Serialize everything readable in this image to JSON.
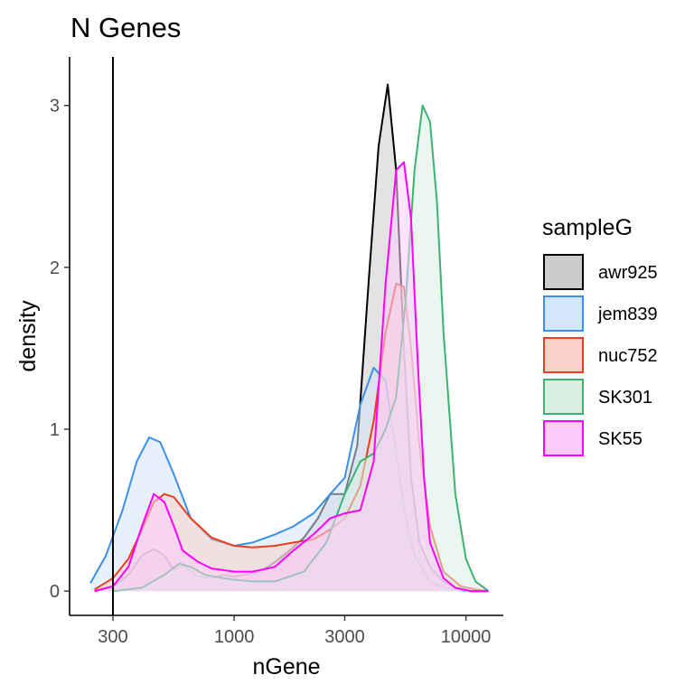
{
  "chart_data": {
    "type": "area",
    "title": "N Genes",
    "xlabel": "nGene",
    "ylabel": "density",
    "x_scale": "log10",
    "x_ticks": [
      300,
      1000,
      3000,
      10000
    ],
    "x_tick_labels": [
      "300",
      "1000",
      "3000",
      "10000"
    ],
    "xlim": [
      195,
      14500
    ],
    "y_ticks": [
      0,
      1,
      2,
      3
    ],
    "y_tick_labels": [
      "0",
      "1",
      "2",
      "3"
    ],
    "ylim": [
      -0.15,
      3.3
    ],
    "vline_x": 300,
    "grid": false,
    "legend": {
      "title": "sampleG",
      "position": "right"
    },
    "series": [
      {
        "name": "awr925",
        "color": "#000000",
        "fill": "#cccccc",
        "x": [
          250,
          300,
          350,
          400,
          450,
          500,
          550,
          600,
          700,
          800,
          900,
          1000,
          1100,
          1200,
          1300,
          1500,
          1700,
          2000,
          2300,
          2600,
          3000,
          3400,
          3800,
          4200,
          4600,
          5000,
          5400,
          5800,
          6300,
          7000,
          8000,
          9000,
          10500,
          12500
        ],
        "y": [
          0.0,
          0.03,
          0.1,
          0.22,
          0.26,
          0.22,
          0.13,
          0.16,
          0.09,
          0.08,
          0.1,
          0.09,
          0.1,
          0.11,
          0.12,
          0.18,
          0.24,
          0.33,
          0.45,
          0.6,
          0.6,
          0.9,
          1.9,
          2.75,
          3.13,
          2.6,
          1.5,
          0.7,
          0.3,
          0.15,
          0.06,
          0.02,
          0.0,
          0.0
        ]
      },
      {
        "name": "jem839",
        "color": "#3d8fe8",
        "fill": "#d4e6f9",
        "x": [
          240,
          280,
          330,
          380,
          430,
          480,
          550,
          650,
          800,
          1000,
          1200,
          1500,
          1800,
          2200,
          2600,
          3000,
          3500,
          4000,
          4500,
          5000,
          5500,
          6000,
          7000,
          8000,
          9000,
          10000
        ],
        "y": [
          0.05,
          0.22,
          0.5,
          0.8,
          0.95,
          0.92,
          0.72,
          0.45,
          0.32,
          0.28,
          0.3,
          0.35,
          0.4,
          0.48,
          0.6,
          0.7,
          1.15,
          1.38,
          1.3,
          0.85,
          0.45,
          0.22,
          0.06,
          0.02,
          0.01,
          0.0
        ]
      },
      {
        "name": "nuc752",
        "color": "#e8401e",
        "fill": "#fad2cb",
        "x": [
          250,
          300,
          350,
          400,
          450,
          500,
          550,
          650,
          800,
          1000,
          1200,
          1500,
          1800,
          2200,
          2600,
          3000,
          3500,
          4000,
          4500,
          5000,
          5400,
          5800,
          6300,
          7000,
          8000,
          9500,
          11000,
          12500
        ],
        "y": [
          0.01,
          0.08,
          0.2,
          0.38,
          0.55,
          0.6,
          0.58,
          0.45,
          0.33,
          0.28,
          0.27,
          0.28,
          0.3,
          0.32,
          0.38,
          0.45,
          0.65,
          1.05,
          1.6,
          1.9,
          1.88,
          1.5,
          0.9,
          0.4,
          0.12,
          0.03,
          0.01,
          0.0
        ]
      },
      {
        "name": "SK301",
        "color": "#3cb371",
        "fill": "#d9efe2",
        "x": [
          300,
          400,
          500,
          580,
          650,
          750,
          900,
          1000,
          1200,
          1500,
          2000,
          2500,
          3000,
          3500,
          4000,
          4500,
          5000,
          5500,
          6000,
          6500,
          7000,
          7500,
          8000,
          9000,
          10000,
          11000,
          12500
        ],
        "y": [
          0.0,
          0.02,
          0.1,
          0.17,
          0.15,
          0.1,
          0.08,
          0.07,
          0.06,
          0.06,
          0.12,
          0.3,
          0.6,
          0.8,
          0.85,
          1.0,
          1.2,
          1.8,
          2.6,
          3.0,
          2.9,
          2.4,
          1.6,
          0.6,
          0.2,
          0.06,
          0.0
        ]
      },
      {
        "name": "SK55",
        "color": "#ff00ff",
        "fill": "#fcccfc",
        "x": [
          250,
          300,
          350,
          400,
          450,
          500,
          550,
          600,
          700,
          800,
          1000,
          1200,
          1500,
          1800,
          2200,
          2600,
          3000,
          3500,
          4000,
          4500,
          5000,
          5400,
          5800,
          6200,
          6600,
          7000,
          8000,
          9000,
          10500,
          12500
        ],
        "y": [
          0.0,
          0.03,
          0.15,
          0.4,
          0.6,
          0.55,
          0.4,
          0.25,
          0.18,
          0.14,
          0.12,
          0.12,
          0.15,
          0.25,
          0.35,
          0.45,
          0.48,
          0.5,
          0.8,
          1.9,
          2.6,
          2.65,
          2.3,
          1.4,
          0.7,
          0.3,
          0.08,
          0.02,
          0.0,
          0.0
        ]
      }
    ]
  }
}
